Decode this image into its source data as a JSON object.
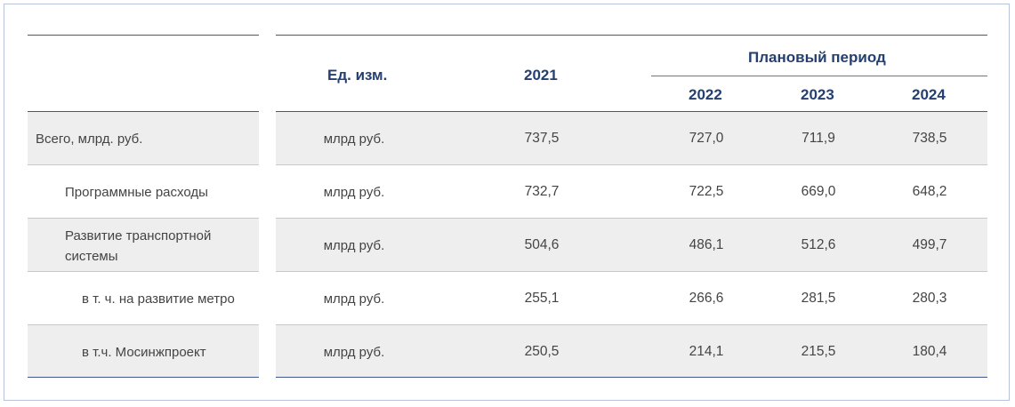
{
  "table": {
    "header": {
      "unit": "Ед. изм.",
      "year_2021": "2021",
      "planning_period": "Плановый период",
      "year_2022": "2022",
      "year_2023": "2023",
      "year_2024": "2024"
    },
    "rows": [
      {
        "label": "Всего, млрд. руб.",
        "unit": "млрд руб.",
        "v2021": "737,5",
        "v2022": "727,0",
        "v2023": "711,9",
        "v2024": "738,5"
      },
      {
        "label": "Программные расходы",
        "unit": "млрд руб.",
        "v2021": "732,7",
        "v2022": "722,5",
        "v2023": "669,0",
        "v2024": "648,2"
      },
      {
        "label_line1": "Развитие транспортной",
        "label_line2": "системы",
        "unit": "млрд руб.",
        "v2021": "504,6",
        "v2022": "486,1",
        "v2023": "512,6",
        "v2024": "499,7"
      },
      {
        "label": "в т. ч. на развитие метро",
        "unit": "млрд руб.",
        "v2021": "255,1",
        "v2022": "266,6",
        "v2023": "281,5",
        "v2024": "280,3"
      },
      {
        "label": "в т.ч. Мосинжпроект",
        "unit": "млрд руб.",
        "v2021": "250,5",
        "v2022": "214,1",
        "v2023": "215,5",
        "v2024": "180,4"
      }
    ]
  }
}
